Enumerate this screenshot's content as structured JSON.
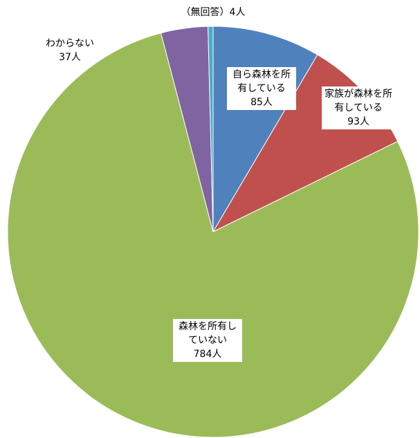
{
  "chart_data": {
    "type": "pie",
    "categories": [
      "自ら森林を所有している",
      "家族が森林を所有している",
      "森林を所有していない",
      "わからない",
      "（無回答）"
    ],
    "values": [
      85,
      93,
      784,
      37,
      4
    ],
    "value_labels": [
      "85人",
      "93人",
      "784人",
      "37人",
      "4人"
    ],
    "colors": [
      "#4f81bd",
      "#c0504d",
      "#9bbb59",
      "#8064a2",
      "#4bacc6"
    ]
  }
}
